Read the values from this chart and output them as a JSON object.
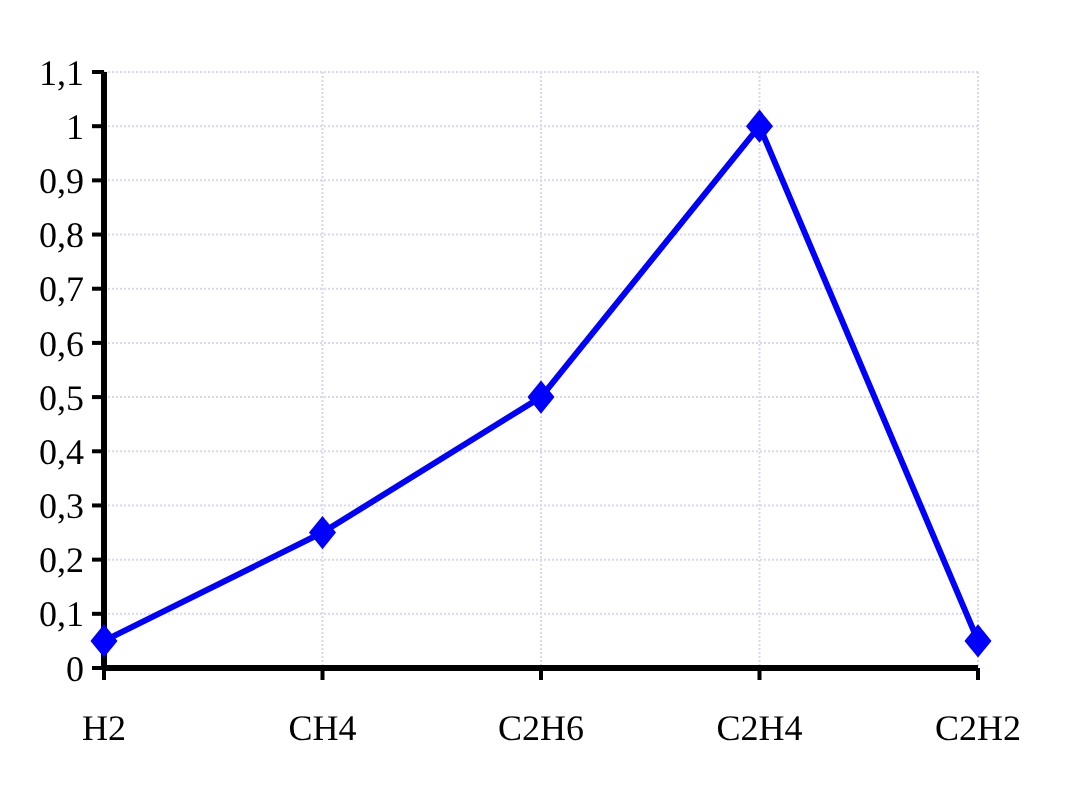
{
  "chart_data": {
    "type": "line",
    "categories": [
      "H2",
      "CH4",
      "C2H6",
      "C2H4",
      "C2H2"
    ],
    "series": [
      {
        "color": "#0000ff",
        "values": [
          0.05,
          0.25,
          0.5,
          1,
          0.05
        ]
      }
    ],
    "ylim": [
      0,
      1.1
    ],
    "yticks": [
      0,
      {
        "value": 0.1,
        "label": "0,1"
      },
      {
        "value": 0.2,
        "label": "0,2"
      },
      {
        "value": 0.3,
        "label": "0,3"
      },
      {
        "value": 0.4,
        "label": "0,4"
      },
      {
        "value": 0.5,
        "label": "0,5"
      },
      {
        "value": 0.6,
        "label": "0,6"
      },
      {
        "value": 0.7,
        "label": "0,7"
      },
      {
        "value": 0.8,
        "label": "0,8"
      },
      {
        "value": 0.9,
        "label": "0,9"
      },
      1,
      {
        "value": 1.1,
        "label": "1,1"
      }
    ],
    "grid": true,
    "marker": "diamond",
    "line_style": "solid"
  }
}
